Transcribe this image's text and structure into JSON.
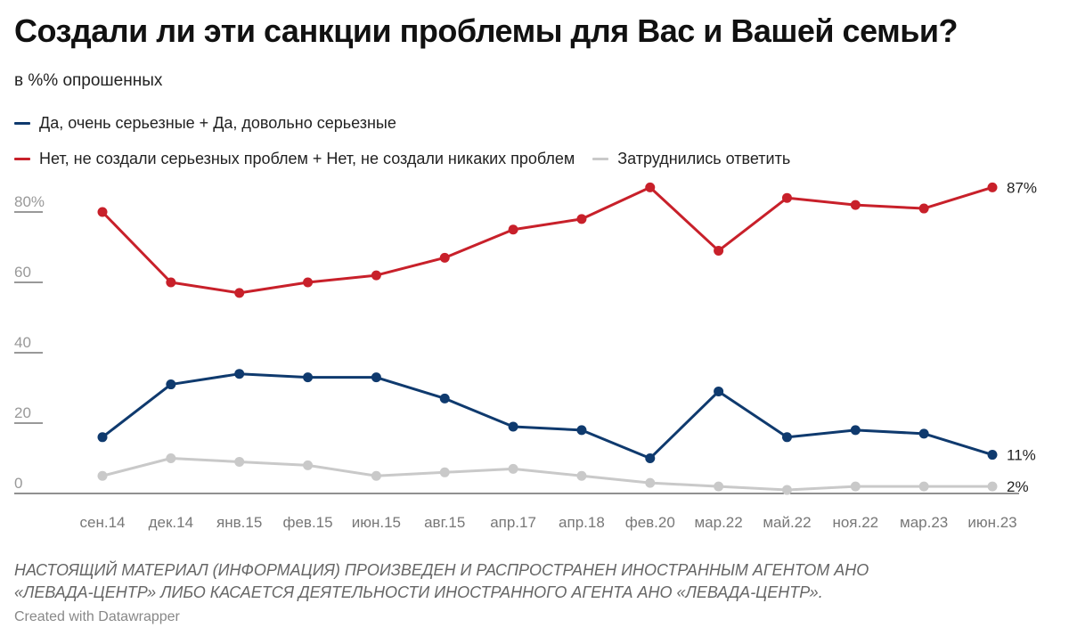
{
  "title": "Создали ли эти санкции проблемы для Вас и Вашей семьи?",
  "subtitle": "в %% опрошенных",
  "footnote": [
    "НАСТОЯЩИЙ МАТЕРИАЛ (ИНФОРМАЦИЯ) ПРОИЗВЕДЕН И РАСПРОСТРАНЕН ИНОСТРАННЫМ АГЕНТОМ АНО",
    "«ЛЕВАДА-ЦЕНТР» ЛИБО КАСАЕТСЯ ДЕЯТЕЛЬНОСТИ ИНОСТРАННОГО АГЕНТА АНО «ЛЕВАДА-ЦЕНТР»."
  ],
  "credit": "Created with Datawrapper",
  "chart_data": {
    "type": "line",
    "title": "Создали ли эти санкции проблемы для Вас и Вашей семьи?",
    "subtitle": "в %% опрошенных",
    "categories": [
      "сен.14",
      "дек.14",
      "янв.15",
      "фев.15",
      "июн.15",
      "авг.15",
      "апр.17",
      "апр.18",
      "фев.20",
      "мар.22",
      "май.22",
      "ноя.22",
      "мар.23",
      "июн.23"
    ],
    "ylim": [
      0,
      87
    ],
    "yticks": [
      0,
      20,
      40,
      60,
      80
    ],
    "ytick_labels": [
      "0",
      "20",
      "40",
      "60",
      "80%"
    ],
    "grid": false,
    "legend_position": "top-left",
    "series": [
      {
        "name": "Да, очень серьезные + Да, довольно серьезные",
        "color": "#0f3a6e",
        "values": [
          16,
          31,
          34,
          33,
          33,
          27,
          19,
          18,
          10,
          29,
          16,
          18,
          17,
          11
        ],
        "end_label": "11%"
      },
      {
        "name": "Нет, не создали серьезных проблем + Нет, не создали никаких проблем",
        "color": "#c8202a",
        "values": [
          80,
          60,
          57,
          60,
          62,
          67,
          75,
          78,
          87,
          69,
          84,
          82,
          81,
          87
        ],
        "end_label": "87%"
      },
      {
        "name": "Затруднились ответить",
        "color": "#c9c9c9",
        "values": [
          5,
          10,
          9,
          8,
          5,
          6,
          7,
          5,
          3,
          2,
          1,
          2,
          2,
          2
        ],
        "end_label": "2%"
      }
    ]
  }
}
